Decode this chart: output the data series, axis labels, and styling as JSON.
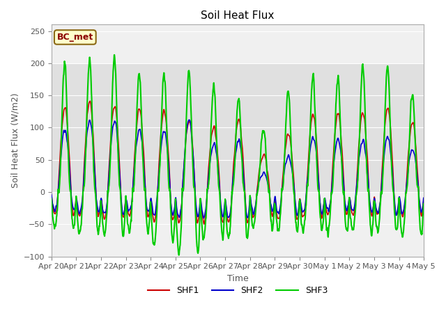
{
  "title": "Soil Heat Flux",
  "xlabel": "Time",
  "ylabel": "Soil Heat Flux (W/m2)",
  "ylim": [
    -100,
    260
  ],
  "yticks": [
    -100,
    -50,
    0,
    50,
    100,
    150,
    200,
    250
  ],
  "colors": {
    "SHF1": "#cc0000",
    "SHF2": "#0000cc",
    "SHF3": "#00cc00"
  },
  "annotation_text": "BC_met",
  "annotation_box_color": "#ffffcc",
  "annotation_box_edge": "#8B6914",
  "fig_facecolor": "#ffffff",
  "plot_facecolor": "#f0f0f0",
  "band_facecolor": "#e0e0e0",
  "x_tick_labels": [
    "Apr 20",
    "Apr 21",
    "Apr 22",
    "Apr 23",
    "Apr 24",
    "Apr 25",
    "Apr 26",
    "Apr 27",
    "Apr 28",
    "Apr 29",
    "Apr 30",
    "May 1",
    "May 2",
    "May 3",
    "May 4",
    "May 5"
  ],
  "n_days": 15,
  "dt_hours": 0.25,
  "peaks_shf1": [
    130,
    140,
    135,
    128,
    125,
    113,
    100,
    113,
    60,
    90,
    120,
    122,
    122,
    132,
    107
  ],
  "peaks_shf2": [
    95,
    110,
    110,
    97,
    95,
    113,
    75,
    80,
    30,
    55,
    85,
    83,
    80,
    85,
    66
  ],
  "peaks_shf3": [
    200,
    205,
    210,
    187,
    185,
    185,
    165,
    145,
    100,
    155,
    180,
    180,
    195,
    195,
    153
  ],
  "troughs_shf1": [
    35,
    38,
    40,
    38,
    45,
    48,
    48,
    47,
    38,
    42,
    38,
    36,
    36,
    38,
    36
  ],
  "troughs_shf2": [
    28,
    32,
    35,
    32,
    36,
    40,
    40,
    40,
    30,
    35,
    33,
    30,
    30,
    33,
    30
  ],
  "troughs_shf3": [
    55,
    65,
    65,
    60,
    80,
    95,
    70,
    72,
    55,
    60,
    62,
    62,
    62,
    62,
    68
  ],
  "linewidth_shf1": 1.2,
  "linewidth_shf2": 1.2,
  "linewidth_shf3": 1.5
}
